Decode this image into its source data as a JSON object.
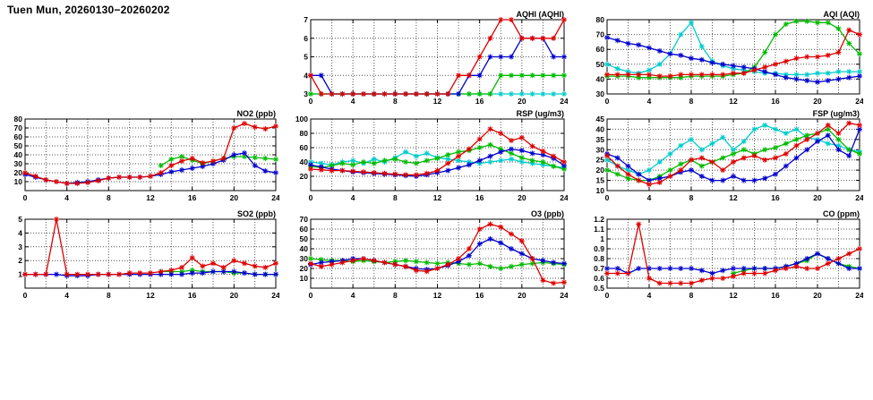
{
  "page": {
    "title": "Tuen Mun, 20260130−20260202"
  },
  "colors": {
    "red": "#dd0000",
    "blue": "#0000cc",
    "green": "#00bb00",
    "cyan": "#00cccc"
  },
  "chart_data": [
    {
      "id": "aqhi",
      "type": "line",
      "title": "AQHI (AQHI)",
      "x_unit": "hour",
      "xlim": [
        0,
        24
      ],
      "x_ticks": [
        0,
        4,
        8,
        12,
        16,
        20,
        24
      ],
      "x_grid_step": 2,
      "ylim": [
        3,
        7
      ],
      "y_ticks": [
        3,
        4,
        5,
        6,
        7
      ],
      "series": [
        {
          "name": "cyan",
          "color_key": "cyan",
          "values": [
            3,
            3,
            3,
            3,
            3,
            3,
            3,
            3,
            3,
            3,
            3,
            3,
            3,
            3,
            3,
            3,
            3,
            3,
            3,
            3,
            3,
            3,
            3,
            3,
            3
          ]
        },
        {
          "name": "green",
          "color_key": "green",
          "values": [
            3,
            3,
            3,
            3,
            3,
            3,
            3,
            3,
            3,
            3,
            3,
            3,
            3,
            3,
            3,
            3,
            3,
            3,
            4,
            4,
            4,
            4,
            4,
            4,
            4
          ]
        },
        {
          "name": "blue",
          "color_key": "blue",
          "values": [
            4,
            4,
            3,
            3,
            3,
            3,
            3,
            3,
            3,
            3,
            3,
            3,
            3,
            3,
            3,
            4,
            4,
            5,
            5,
            5,
            6,
            6,
            6,
            5,
            5
          ]
        },
        {
          "name": "red",
          "color_key": "red",
          "values": [
            4,
            3,
            3,
            3,
            3,
            3,
            3,
            3,
            3,
            3,
            3,
            3,
            3,
            3,
            4,
            4,
            5,
            6,
            7,
            7,
            6,
            6,
            6,
            6,
            7
          ]
        }
      ]
    },
    {
      "id": "aqi",
      "type": "line",
      "title": "AQI (AQI)",
      "x_unit": "hour",
      "xlim": [
        0,
        24
      ],
      "x_ticks": [
        0,
        4,
        8,
        12,
        16,
        20,
        24
      ],
      "x_grid_step": 2,
      "ylim": [
        30,
        80
      ],
      "y_ticks": [
        30,
        40,
        50,
        60,
        70,
        80
      ],
      "series": [
        {
          "name": "cyan",
          "color_key": "cyan",
          "values": [
            50,
            47,
            45,
            44,
            46,
            50,
            57,
            70,
            78,
            62,
            52,
            49,
            47,
            46,
            45,
            44,
            44,
            43,
            43,
            43,
            44,
            44,
            45,
            45,
            45
          ]
        },
        {
          "name": "green",
          "color_key": "green",
          "values": [
            42,
            42,
            42,
            41,
            41,
            41,
            41,
            41,
            42,
            42,
            42,
            42,
            43,
            44,
            48,
            58,
            70,
            77,
            79,
            79,
            78,
            78,
            74,
            64,
            57
          ]
        },
        {
          "name": "blue",
          "color_key": "blue",
          "values": [
            68,
            66,
            64,
            63,
            61,
            59,
            57,
            56,
            54,
            53,
            51,
            50,
            49,
            48,
            47,
            45,
            43,
            41,
            40,
            39,
            38,
            39,
            40,
            41,
            42
          ]
        },
        {
          "name": "red",
          "color_key": "red",
          "values": [
            43,
            43,
            43,
            43,
            43,
            42,
            42,
            43,
            43,
            43,
            43,
            43,
            44,
            44,
            46,
            48,
            50,
            52,
            54,
            55,
            55,
            56,
            58,
            73,
            70
          ]
        }
      ]
    },
    {
      "id": "no2",
      "type": "line",
      "title": "NO2 (ppb)",
      "x_unit": "hour",
      "xlim": [
        0,
        24
      ],
      "x_ticks": [
        0,
        4,
        8,
        12,
        16,
        20,
        24
      ],
      "x_grid_step": 2,
      "ylim": [
        0,
        80
      ],
      "y_ticks": [
        10,
        20,
        30,
        40,
        50,
        60,
        70,
        80
      ],
      "series": [
        {
          "name": "green",
          "color_key": "green",
          "values": [
            null,
            null,
            null,
            null,
            null,
            null,
            null,
            null,
            null,
            null,
            null,
            null,
            null,
            28,
            35,
            38,
            34,
            30,
            33,
            36,
            38,
            38,
            37,
            36,
            35
          ]
        },
        {
          "name": "blue",
          "color_key": "blue",
          "values": [
            18,
            15,
            12,
            10,
            8,
            9,
            10,
            12,
            14,
            15,
            15,
            15,
            16,
            18,
            21,
            23,
            25,
            27,
            30,
            34,
            40,
            42,
            28,
            22,
            20
          ]
        },
        {
          "name": "red",
          "color_key": "red",
          "values": [
            20,
            16,
            12,
            10,
            8,
            8,
            9,
            11,
            14,
            15,
            15,
            15,
            16,
            20,
            28,
            33,
            36,
            31,
            33,
            36,
            70,
            75,
            71,
            69,
            72
          ]
        }
      ]
    },
    {
      "id": "rsp",
      "type": "line",
      "title": "RSP (ug/m3)",
      "x_unit": "hour",
      "xlim": [
        0,
        24
      ],
      "x_ticks": [
        0,
        4,
        8,
        12,
        16,
        20,
        24
      ],
      "x_grid_step": 2,
      "ylim": [
        0,
        100
      ],
      "y_ticks": [
        20,
        40,
        60,
        80,
        100
      ],
      "series": [
        {
          "name": "cyan",
          "color_key": "cyan",
          "values": [
            40,
            38,
            36,
            40,
            42,
            38,
            44,
            40,
            46,
            54,
            48,
            52,
            46,
            44,
            42,
            40,
            38,
            40,
            42,
            44,
            40,
            38,
            36,
            34,
            32
          ]
        },
        {
          "name": "green",
          "color_key": "green",
          "values": [
            34,
            32,
            35,
            38,
            36,
            40,
            38,
            42,
            44,
            40,
            38,
            42,
            45,
            50,
            54,
            56,
            60,
            64,
            58,
            52,
            46,
            42,
            40,
            34,
            30
          ]
        },
        {
          "name": "blue",
          "color_key": "blue",
          "values": [
            36,
            33,
            30,
            28,
            26,
            25,
            24,
            23,
            22,
            21,
            20,
            22,
            25,
            28,
            32,
            36,
            42,
            48,
            54,
            58,
            56,
            52,
            50,
            45,
            35
          ]
        },
        {
          "name": "red",
          "color_key": "red",
          "values": [
            30,
            29,
            28,
            28,
            27,
            26,
            25,
            24,
            23,
            22,
            22,
            24,
            28,
            38,
            48,
            58,
            72,
            86,
            80,
            70,
            74,
            62,
            55,
            48,
            40
          ]
        }
      ]
    },
    {
      "id": "fsp",
      "type": "line",
      "title": "FSP (ug/m3)",
      "x_unit": "hour",
      "xlim": [
        0,
        24
      ],
      "x_ticks": [
        0,
        4,
        8,
        12,
        16,
        20,
        24
      ],
      "x_grid_step": 2,
      "ylim": [
        10,
        45
      ],
      "y_ticks": [
        10,
        15,
        20,
        25,
        30,
        35,
        40,
        45
      ],
      "series": [
        {
          "name": "cyan",
          "color_key": "cyan",
          "values": [
            25,
            22,
            20,
            18,
            20,
            24,
            28,
            32,
            35,
            30,
            33,
            36,
            30,
            34,
            40,
            42,
            40,
            38,
            40,
            36,
            35,
            33,
            32,
            30,
            29
          ]
        },
        {
          "name": "green",
          "color_key": "green",
          "values": [
            20,
            18,
            16,
            15,
            15,
            17,
            20,
            23,
            25,
            22,
            24,
            26,
            28,
            30,
            28,
            30,
            31,
            33,
            35,
            37,
            38,
            40,
            35,
            30,
            28
          ]
        },
        {
          "name": "blue",
          "color_key": "blue",
          "values": [
            28,
            26,
            22,
            18,
            15,
            16,
            17,
            19,
            20,
            17,
            15,
            15,
            17,
            15,
            15,
            16,
            18,
            22,
            26,
            30,
            34,
            37,
            30,
            27,
            40
          ]
        },
        {
          "name": "red",
          "color_key": "red",
          "values": [
            27,
            22,
            18,
            15,
            13,
            14,
            17,
            20,
            25,
            26,
            24,
            20,
            24,
            26,
            27,
            25,
            26,
            28,
            32,
            35,
            38,
            42,
            38,
            43,
            42
          ]
        }
      ]
    },
    {
      "id": "so2",
      "type": "line",
      "title": "SO2 (ppb)",
      "x_unit": "hour",
      "xlim": [
        0,
        24
      ],
      "x_ticks": [
        0,
        4,
        8,
        12,
        16,
        20,
        24
      ],
      "x_grid_step": 2,
      "ylim": [
        0,
        5
      ],
      "y_ticks": [
        1,
        2,
        3,
        4,
        5
      ],
      "series": [
        {
          "name": "green",
          "color_key": "green",
          "values": [
            null,
            null,
            null,
            null,
            null,
            null,
            null,
            null,
            null,
            null,
            null,
            null,
            null,
            1.2,
            1.2,
            1.2,
            1.3,
            1.2,
            1.2,
            1.2,
            1.1,
            1.1,
            1.0,
            1.0,
            1.0
          ]
        },
        {
          "name": "blue",
          "color_key": "blue",
          "values": [
            1,
            1,
            1,
            1,
            0.9,
            0.9,
            0.9,
            1,
            1,
            1,
            1,
            1,
            1,
            1,
            1,
            1,
            1.1,
            1.1,
            1.2,
            1.2,
            1.2,
            1.1,
            1.0,
            1.0,
            1.0
          ]
        },
        {
          "name": "red",
          "color_key": "red",
          "values": [
            1,
            1,
            1,
            5,
            1,
            1,
            1,
            1,
            1,
            1,
            1.1,
            1.1,
            1.1,
            1.2,
            1.3,
            1.5,
            2.2,
            1.6,
            1.8,
            1.5,
            2.0,
            1.8,
            1.6,
            1.5,
            1.8
          ]
        }
      ]
    },
    {
      "id": "o3",
      "type": "line",
      "title": "O3 (ppb)",
      "x_unit": "hour",
      "xlim": [
        0,
        24
      ],
      "x_ticks": [
        0,
        4,
        8,
        12,
        16,
        20,
        24
      ],
      "x_grid_step": 2,
      "ylim": [
        0,
        70
      ],
      "y_ticks": [
        10,
        20,
        30,
        40,
        50,
        60,
        70
      ],
      "series": [
        {
          "name": "green",
          "color_key": "green",
          "values": [
            30,
            29,
            28,
            28,
            27,
            28,
            27,
            26,
            27,
            28,
            27,
            26,
            25,
            26,
            25,
            24,
            25,
            22,
            20,
            22,
            24,
            25,
            26,
            25,
            24
          ]
        },
        {
          "name": "blue",
          "color_key": "blue",
          "values": [
            24,
            26,
            27,
            28,
            30,
            30,
            28,
            26,
            24,
            22,
            20,
            19,
            20,
            23,
            27,
            33,
            45,
            50,
            46,
            40,
            35,
            30,
            28,
            26,
            25
          ]
        },
        {
          "name": "red",
          "color_key": "red",
          "values": [
            25,
            22,
            24,
            26,
            28,
            30,
            28,
            26,
            24,
            22,
            18,
            17,
            20,
            24,
            30,
            40,
            60,
            65,
            62,
            55,
            48,
            30,
            8,
            5,
            6
          ]
        }
      ]
    },
    {
      "id": "co",
      "type": "line",
      "title": "CO (ppm)",
      "x_unit": "hour",
      "xlim": [
        0,
        24
      ],
      "x_ticks": [
        0,
        4,
        8,
        12,
        16,
        20,
        24
      ],
      "x_grid_step": 2,
      "ylim": [
        0.5,
        1.2
      ],
      "y_ticks": [
        0.5,
        0.6,
        0.7,
        0.8,
        0.9,
        1,
        1.1,
        1.2
      ],
      "y_tick_labels": [
        "0.5",
        "0.6",
        "0.7",
        "0.8",
        "0.9",
        "1",
        "1.1",
        "1.2"
      ],
      "series": [
        {
          "name": "green",
          "color_key": "green",
          "values": [
            null,
            null,
            null,
            null,
            null,
            null,
            null,
            null,
            null,
            null,
            null,
            null,
            0.65,
            0.68,
            0.7,
            0.7,
            0.7,
            0.72,
            0.75,
            0.78,
            0.85,
            0.8,
            0.75,
            0.72,
            0.7
          ]
        },
        {
          "name": "blue",
          "color_key": "blue",
          "values": [
            0.7,
            0.7,
            0.65,
            0.7,
            0.7,
            0.7,
            0.7,
            0.7,
            0.7,
            0.68,
            0.65,
            0.68,
            0.7,
            0.7,
            0.7,
            0.7,
            0.7,
            0.72,
            0.75,
            0.8,
            0.85,
            0.8,
            0.75,
            0.7,
            0.7
          ]
        },
        {
          "name": "red",
          "color_key": "red",
          "values": [
            0.65,
            0.65,
            0.65,
            1.15,
            0.6,
            0.55,
            0.55,
            0.55,
            0.55,
            0.58,
            0.6,
            0.6,
            0.62,
            0.65,
            0.65,
            0.65,
            0.68,
            0.7,
            0.72,
            0.7,
            0.7,
            0.75,
            0.8,
            0.85,
            0.9
          ]
        }
      ]
    }
  ]
}
